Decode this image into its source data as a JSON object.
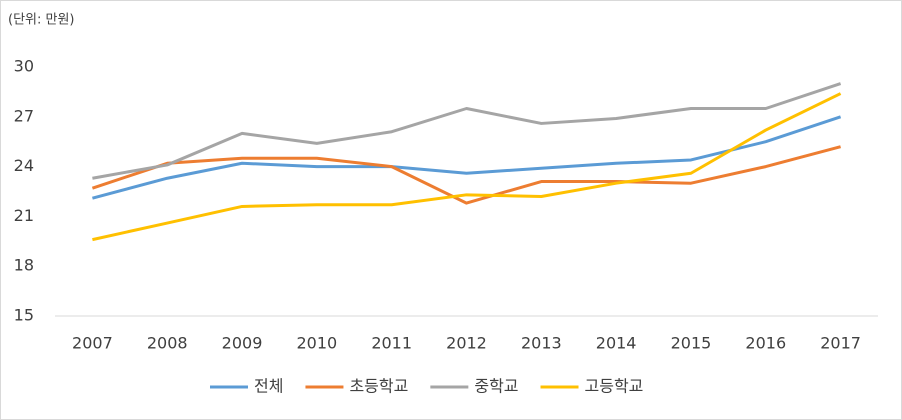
{
  "chart_data": {
    "type": "line",
    "annotation": "(단위: 만원)",
    "categories": [
      "2007",
      "2008",
      "2009",
      "2010",
      "2011",
      "2012",
      "2013",
      "2014",
      "2015",
      "2016",
      "2017"
    ],
    "series": [
      {
        "name": "전체",
        "color": "#5b9bd5",
        "values": [
          22.1,
          23.3,
          24.2,
          24.0,
          24.0,
          23.6,
          23.9,
          24.2,
          24.4,
          25.5,
          27.0
        ]
      },
      {
        "name": "초등학교",
        "color": "#ed7d31",
        "values": [
          22.7,
          24.2,
          24.5,
          24.5,
          24.0,
          21.8,
          23.1,
          23.1,
          23.0,
          24.0,
          25.2
        ]
      },
      {
        "name": "중학교",
        "color": "#a5a5a5",
        "values": [
          23.3,
          24.1,
          26.0,
          25.4,
          26.1,
          27.5,
          26.6,
          26.9,
          27.5,
          27.5,
          29.0
        ]
      },
      {
        "name": "고등학교",
        "color": "#ffc000",
        "values": [
          19.6,
          20.6,
          21.6,
          21.7,
          21.7,
          22.3,
          22.2,
          23.0,
          23.6,
          26.2,
          28.4
        ]
      }
    ],
    "ylim": [
      15,
      30
    ],
    "yticks": [
      15,
      18,
      21,
      24,
      27,
      30
    ],
    "grid": false,
    "legend": "bottom"
  }
}
